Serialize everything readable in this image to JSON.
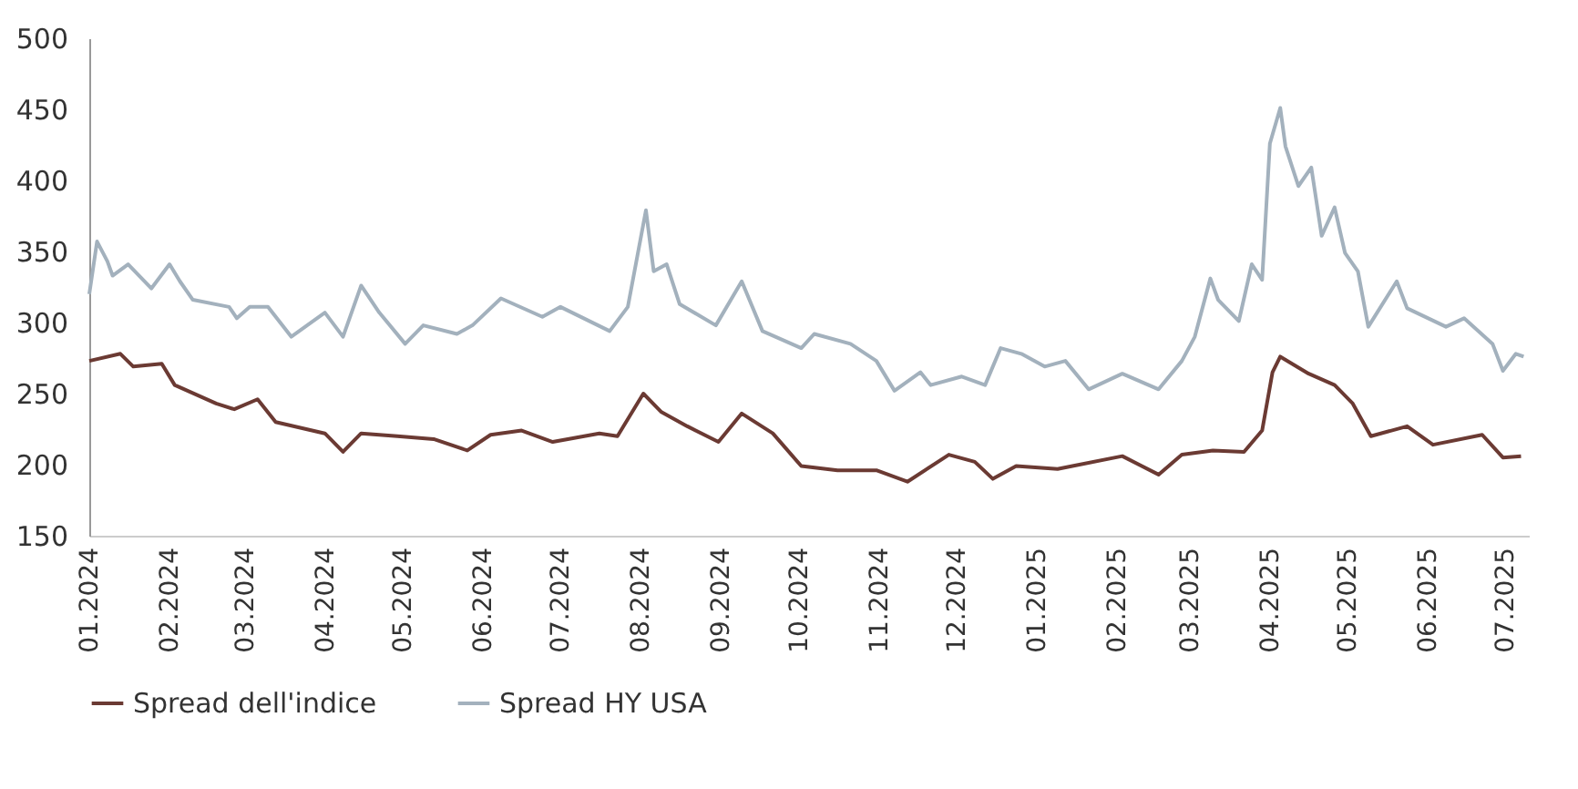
{
  "chart_data": {
    "type": "line",
    "legend": "bottom",
    "grid": false,
    "marker": "none",
    "line_style": "solid",
    "ylim": [
      150,
      500
    ],
    "yticks": [
      150,
      200,
      250,
      300,
      350,
      400,
      450,
      500
    ],
    "xlim": [
      "2024-01-01",
      "2025-07-10"
    ],
    "xticks": [
      {
        "value": "2024-01-01",
        "label": "01.2024"
      },
      {
        "value": "2024-02-01",
        "label": "02.2024"
      },
      {
        "value": "2024-03-01",
        "label": "03.2024"
      },
      {
        "value": "2024-04-01",
        "label": "04.2024"
      },
      {
        "value": "2024-05-01",
        "label": "05.2024"
      },
      {
        "value": "2024-06-01",
        "label": "06.2024"
      },
      {
        "value": "2024-07-01",
        "label": "07.2024"
      },
      {
        "value": "2024-08-01",
        "label": "08.2024"
      },
      {
        "value": "2024-09-01",
        "label": "09.2024"
      },
      {
        "value": "2024-10-01",
        "label": "10.2024"
      },
      {
        "value": "2024-11-01",
        "label": "11.2024"
      },
      {
        "value": "2024-12-01",
        "label": "12.2024"
      },
      {
        "value": "2025-01-01",
        "label": "01.2025"
      },
      {
        "value": "2025-02-01",
        "label": "02.2025"
      },
      {
        "value": "2025-03-01",
        "label": "03.2025"
      },
      {
        "value": "2025-04-01",
        "label": "04.2025"
      },
      {
        "value": "2025-05-01",
        "label": "05.2025"
      },
      {
        "value": "2025-06-01",
        "label": "06.2025"
      },
      {
        "value": "2025-07-01",
        "label": "07.2025"
      }
    ],
    "series": [
      {
        "name": "Spread dell'indice",
        "color": "#6b3a33",
        "x": [
          "2024-01-01",
          "2024-01-13",
          "2024-01-18",
          "2024-01-29",
          "2024-02-03",
          "2024-02-19",
          "2024-02-26",
          "2024-03-06",
          "2024-03-13",
          "2024-04-01",
          "2024-04-08",
          "2024-04-15",
          "2024-04-29",
          "2024-05-13",
          "2024-05-26",
          "2024-06-04",
          "2024-06-16",
          "2024-06-28",
          "2024-07-16",
          "2024-07-23",
          "2024-08-02",
          "2024-08-09",
          "2024-08-19",
          "2024-08-31",
          "2024-09-09",
          "2024-09-21",
          "2024-10-02",
          "2024-10-16",
          "2024-10-31",
          "2024-11-12",
          "2024-11-28",
          "2024-12-08",
          "2024-12-15",
          "2024-12-24",
          "2025-01-09",
          "2025-02-03",
          "2025-02-17",
          "2025-02-26",
          "2025-03-10",
          "2025-03-22",
          "2025-03-29",
          "2025-04-02",
          "2025-04-05",
          "2025-04-16",
          "2025-04-26",
          "2025-05-03",
          "2025-05-10",
          "2025-05-24",
          "2025-06-03",
          "2025-06-22",
          "2025-06-30",
          "2025-07-07"
        ],
        "values": [
          273,
          278,
          269,
          271,
          256,
          243,
          239,
          246,
          230,
          222,
          209,
          222,
          220,
          218,
          210,
          221,
          224,
          216,
          222,
          220,
          250,
          237,
          227,
          216,
          236,
          222,
          199,
          196,
          196,
          188,
          207,
          202,
          190,
          199,
          197,
          206,
          193,
          207,
          210,
          209,
          224,
          265,
          276,
          264,
          256,
          243,
          220,
          227,
          214,
          221,
          205,
          206
        ]
      },
      {
        "name": "Spread HY USA",
        "color": "#a3b1bd",
        "x": [
          "2024-01-01",
          "2024-01-04",
          "2024-01-08",
          "2024-01-10",
          "2024-01-16",
          "2024-01-25",
          "2024-02-01",
          "2024-02-05",
          "2024-02-10",
          "2024-02-24",
          "2024-02-27",
          "2024-03-03",
          "2024-03-10",
          "2024-03-19",
          "2024-04-01",
          "2024-04-08",
          "2024-04-15",
          "2024-04-22",
          "2024-05-02",
          "2024-05-09",
          "2024-05-22",
          "2024-05-28",
          "2024-06-08",
          "2024-06-24",
          "2024-07-01",
          "2024-07-20",
          "2024-07-27",
          "2024-08-03",
          "2024-08-06",
          "2024-08-11",
          "2024-08-16",
          "2024-08-30",
          "2024-09-09",
          "2024-09-17",
          "2024-10-02",
          "2024-10-07",
          "2024-10-21",
          "2024-10-31",
          "2024-11-07",
          "2024-11-17",
          "2024-11-21",
          "2024-12-03",
          "2024-12-12",
          "2024-12-18",
          "2024-12-26",
          "2025-01-04",
          "2025-01-12",
          "2025-01-21",
          "2025-02-03",
          "2025-02-17",
          "2025-02-26",
          "2025-03-03",
          "2025-03-09",
          "2025-03-12",
          "2025-03-20",
          "2025-03-25",
          "2025-03-29",
          "2025-04-01",
          "2025-04-05",
          "2025-04-07",
          "2025-04-12",
          "2025-04-17",
          "2025-04-21",
          "2025-04-26",
          "2025-04-30",
          "2025-05-05",
          "2025-05-09",
          "2025-05-20",
          "2025-05-24",
          "2025-06-08",
          "2025-06-15",
          "2025-06-26",
          "2025-06-30",
          "2025-07-05",
          "2025-07-08"
        ],
        "values": [
          320,
          357,
          343,
          333,
          341,
          324,
          341,
          329,
          316,
          311,
          303,
          311,
          311,
          290,
          307,
          290,
          326,
          307,
          285,
          298,
          292,
          298,
          317,
          304,
          311,
          294,
          311,
          379,
          336,
          341,
          313,
          298,
          329,
          294,
          282,
          292,
          285,
          273,
          252,
          265,
          256,
          262,
          256,
          282,
          278,
          269,
          273,
          253,
          264,
          253,
          273,
          290,
          331,
          316,
          301,
          341,
          330,
          426,
          451,
          424,
          396,
          409,
          361,
          381,
          349,
          336,
          297,
          329,
          310,
          297,
          303,
          285,
          266,
          278,
          276
        ]
      }
    ]
  }
}
